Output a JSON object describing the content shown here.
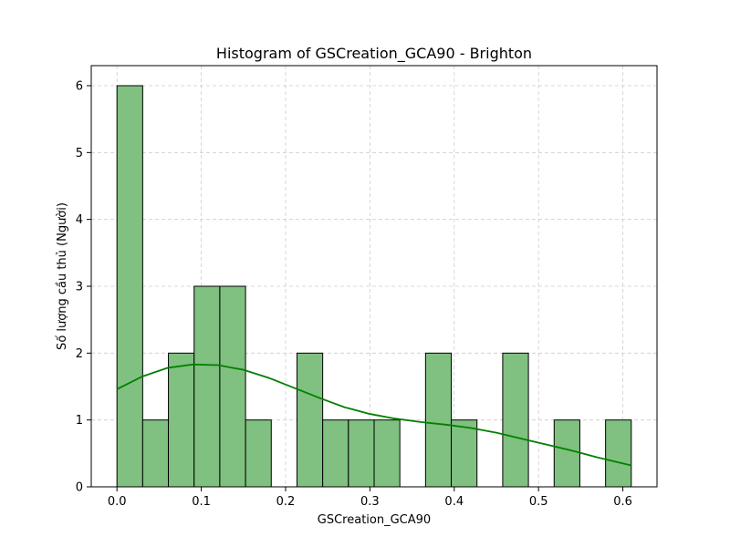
{
  "chart_data": {
    "type": "bar",
    "title": "Histogram of GSCreation_GCA90 - Brighton",
    "xlabel": "GSCreation_GCA90",
    "ylabel": "Số lượng cầu thủ (Người)",
    "xlim": [
      -0.0305,
      0.6405
    ],
    "ylim": [
      0,
      6.3
    ],
    "grid": true,
    "bin_width": 0.0305,
    "bins": [
      {
        "start": 0.0,
        "end": 0.0305,
        "count": 6
      },
      {
        "start": 0.0305,
        "end": 0.061,
        "count": 1
      },
      {
        "start": 0.061,
        "end": 0.0915,
        "count": 2
      },
      {
        "start": 0.0915,
        "end": 0.122,
        "count": 3
      },
      {
        "start": 0.122,
        "end": 0.1525,
        "count": 3
      },
      {
        "start": 0.1525,
        "end": 0.183,
        "count": 1
      },
      {
        "start": 0.183,
        "end": 0.2135,
        "count": 0
      },
      {
        "start": 0.2135,
        "end": 0.244,
        "count": 2
      },
      {
        "start": 0.244,
        "end": 0.2745,
        "count": 1
      },
      {
        "start": 0.2745,
        "end": 0.305,
        "count": 1
      },
      {
        "start": 0.305,
        "end": 0.3355,
        "count": 1
      },
      {
        "start": 0.3355,
        "end": 0.366,
        "count": 0
      },
      {
        "start": 0.366,
        "end": 0.3965,
        "count": 2
      },
      {
        "start": 0.3965,
        "end": 0.427,
        "count": 1
      },
      {
        "start": 0.427,
        "end": 0.4575,
        "count": 0
      },
      {
        "start": 0.4575,
        "end": 0.488,
        "count": 2
      },
      {
        "start": 0.488,
        "end": 0.5185,
        "count": 0
      },
      {
        "start": 0.5185,
        "end": 0.549,
        "count": 1
      },
      {
        "start": 0.549,
        "end": 0.5795,
        "count": 0
      },
      {
        "start": 0.5795,
        "end": 0.61,
        "count": 1
      }
    ],
    "kde_curve": {
      "x": [
        0.0,
        0.03,
        0.06,
        0.09,
        0.12,
        0.15,
        0.18,
        0.21,
        0.24,
        0.27,
        0.3,
        0.33,
        0.36,
        0.39,
        0.42,
        0.45,
        0.48,
        0.51,
        0.54,
        0.57,
        0.61
      ],
      "y": [
        1.46,
        1.65,
        1.78,
        1.83,
        1.82,
        1.75,
        1.63,
        1.48,
        1.33,
        1.19,
        1.09,
        1.02,
        0.97,
        0.93,
        0.88,
        0.81,
        0.72,
        0.63,
        0.54,
        0.44,
        0.32
      ]
    },
    "xticks": [
      "0.0",
      "0.1",
      "0.2",
      "0.3",
      "0.4",
      "0.5",
      "0.6"
    ],
    "xtick_values": [
      0.0,
      0.1,
      0.2,
      0.3,
      0.4,
      0.5,
      0.6
    ],
    "yticks": [
      "0",
      "1",
      "2",
      "3",
      "4",
      "5",
      "6"
    ],
    "ytick_values": [
      0,
      1,
      2,
      3,
      4,
      5,
      6
    ],
    "colors": {
      "bar_fill": "#80c080",
      "bar_edge": "#000000",
      "kde_line": "#008000"
    }
  }
}
